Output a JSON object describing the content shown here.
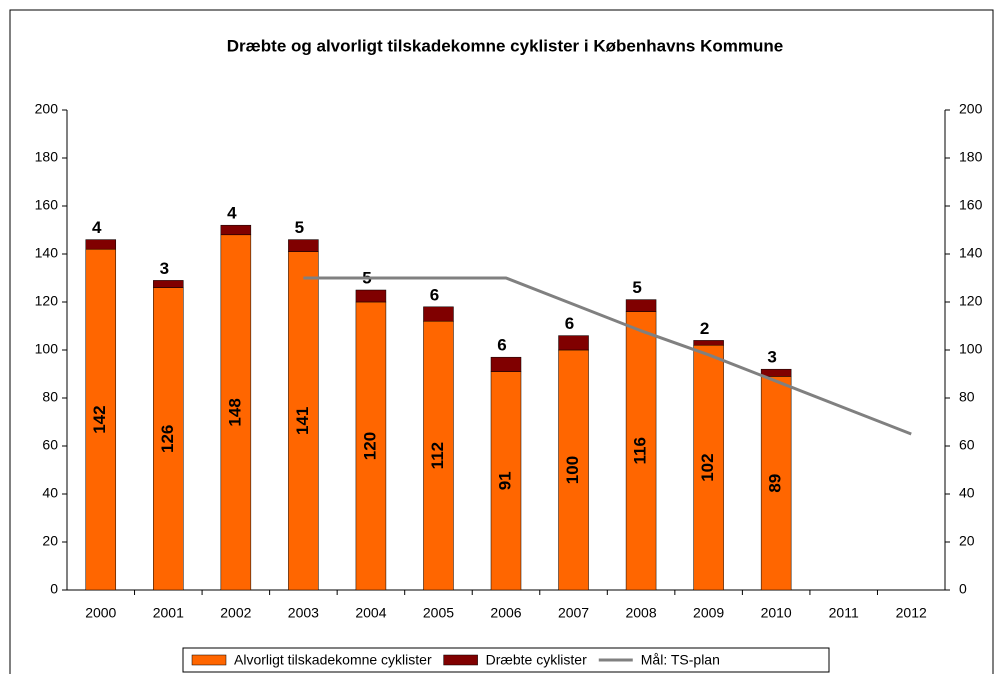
{
  "chart_data": {
    "type": "bar",
    "title": "Dræbte og alvorligt tilskadekomne cyklister i Københavns Kommune",
    "stacked": true,
    "categories": [
      "2000",
      "2001",
      "2002",
      "2003",
      "2004",
      "2005",
      "2006",
      "2007",
      "2008",
      "2009",
      "2010",
      "2011",
      "2012"
    ],
    "series": [
      {
        "name": "Alvorligt tilskadekomne cyklister",
        "color": "#ff6600",
        "values": [
          142,
          126,
          148,
          141,
          120,
          112,
          91,
          100,
          116,
          102,
          89,
          null,
          null
        ]
      },
      {
        "name": "Dræbte cyklister",
        "color": "#800000",
        "values": [
          4,
          3,
          4,
          5,
          5,
          6,
          6,
          6,
          5,
          2,
          3,
          null,
          null
        ]
      },
      {
        "name": "Mål: TS-plan",
        "color": "#808080",
        "type": "line",
        "axis": "y2",
        "values": [
          null,
          null,
          null,
          130,
          130,
          130,
          130,
          119,
          108,
          98,
          87,
          76,
          65
        ]
      }
    ],
    "ylim": [
      0,
      200
    ],
    "yticks": [
      0,
      20,
      40,
      60,
      80,
      100,
      120,
      140,
      160,
      180,
      200
    ],
    "y2lim": [
      0,
      200
    ],
    "y2ticks": [
      0,
      20,
      40,
      60,
      80,
      100,
      120,
      140,
      160,
      180,
      200
    ],
    "legend": "bottom"
  }
}
